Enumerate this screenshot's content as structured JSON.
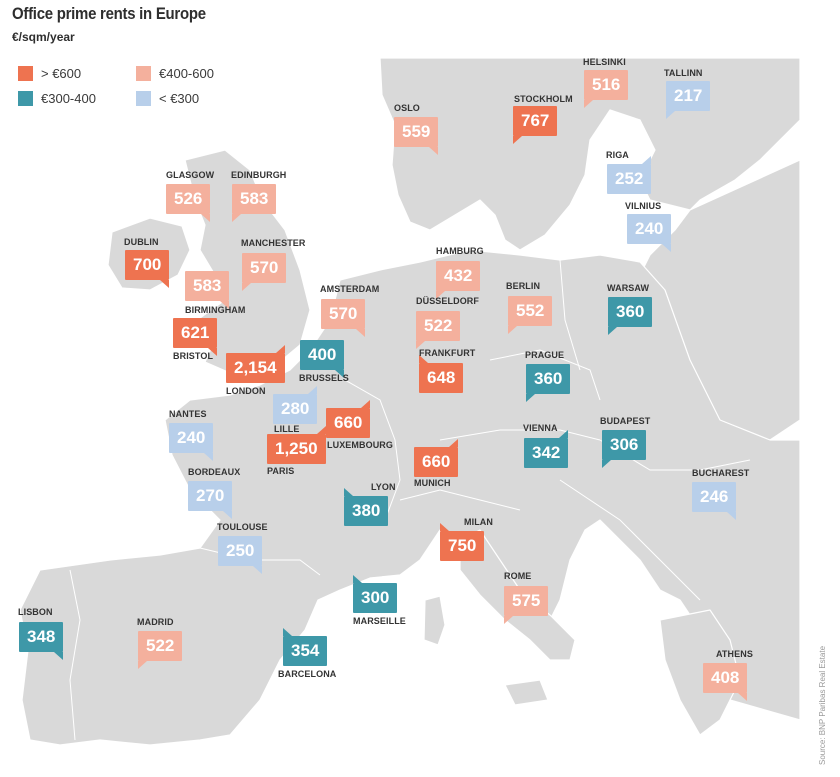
{
  "title": "Office prime rents in Europe",
  "subtitle": "€/sqm/year",
  "source": "Source: BNP Paribas Real Estate",
  "colors": {
    "sea": "#ffffff",
    "land": "#d9d9d9",
    "border": "#ffffff",
    "text": "#333333",
    "over_600": "#ee7350",
    "range_400_600": "#f4b09d",
    "range_300_400": "#3e98a8",
    "under_300": "#b8cfea"
  },
  "legend": [
    {
      "label": "> €600",
      "color": "#ee7350"
    },
    {
      "label": "€400-600",
      "color": "#f4b09d"
    },
    {
      "label": "€300-400",
      "color": "#3e98a8"
    },
    {
      "label": "< €300",
      "color": "#b8cfea"
    }
  ],
  "cities": [
    {
      "name": "HELSINKI",
      "rent": "516",
      "tier": "range_400_600"
    },
    {
      "name": "TALLINN",
      "rent": "217",
      "tier": "under_300"
    },
    {
      "name": "OSLO",
      "rent": "559",
      "tier": "range_400_600"
    },
    {
      "name": "STOCKHOLM",
      "rent": "767",
      "tier": "over_600"
    },
    {
      "name": "RIGA",
      "rent": "252",
      "tier": "under_300"
    },
    {
      "name": "VILNIUS",
      "rent": "240",
      "tier": "under_300"
    },
    {
      "name": "GLASGOW",
      "rent": "526",
      "tier": "range_400_600"
    },
    {
      "name": "EDINBURGH",
      "rent": "583",
      "tier": "range_400_600"
    },
    {
      "name": "DUBLIN",
      "rent": "700",
      "tier": "over_600"
    },
    {
      "name": "MANCHESTER",
      "rent": "570",
      "tier": "range_400_600"
    },
    {
      "name": "BIRMINGHAM",
      "rent": "583",
      "tier": "range_400_600"
    },
    {
      "name": "BRISTOL",
      "rent": "621",
      "tier": "over_600"
    },
    {
      "name": "LONDON",
      "rent": "2,154",
      "tier": "over_600"
    },
    {
      "name": "HAMBURG",
      "rent": "432",
      "tier": "range_400_600"
    },
    {
      "name": "BERLIN",
      "rent": "552",
      "tier": "range_400_600"
    },
    {
      "name": "WARSAW",
      "rent": "360",
      "tier": "range_300_400"
    },
    {
      "name": "AMSTERDAM",
      "rent": "570",
      "tier": "range_400_600"
    },
    {
      "name": "DÜSSELDORF",
      "rent": "522",
      "tier": "range_400_600"
    },
    {
      "name": "BRUSSELS",
      "rent": "400",
      "tier": "range_300_400"
    },
    {
      "name": "FRANKFURT",
      "rent": "648",
      "tier": "over_600"
    },
    {
      "name": "PRAGUE",
      "rent": "360",
      "tier": "range_300_400"
    },
    {
      "name": "LILLE",
      "rent": "280",
      "tier": "under_300"
    },
    {
      "name": "LUXEMBOURG",
      "rent": "660",
      "tier": "over_600"
    },
    {
      "name": "NANTES",
      "rent": "240",
      "tier": "under_300"
    },
    {
      "name": "PARIS",
      "rent": "1,250",
      "tier": "over_600"
    },
    {
      "name": "VIENNA",
      "rent": "342",
      "tier": "range_300_400"
    },
    {
      "name": "BUDAPEST",
      "rent": "306",
      "tier": "range_300_400"
    },
    {
      "name": "MUNICH",
      "rent": "660",
      "tier": "over_600"
    },
    {
      "name": "BORDEAUX",
      "rent": "270",
      "tier": "under_300"
    },
    {
      "name": "LYON",
      "rent": "380",
      "tier": "range_300_400"
    },
    {
      "name": "BUCHAREST",
      "rent": "246",
      "tier": "under_300"
    },
    {
      "name": "TOULOUSE",
      "rent": "250",
      "tier": "under_300"
    },
    {
      "name": "MILAN",
      "rent": "750",
      "tier": "over_600"
    },
    {
      "name": "LISBON",
      "rent": "348",
      "tier": "range_300_400"
    },
    {
      "name": "MADRID",
      "rent": "522",
      "tier": "range_400_600"
    },
    {
      "name": "MARSEILLE",
      "rent": "300",
      "tier": "range_300_400"
    },
    {
      "name": "ROME",
      "rent": "575",
      "tier": "range_400_600"
    },
    {
      "name": "BARCELONA",
      "rent": "354",
      "tier": "range_300_400"
    },
    {
      "name": "ATHENS",
      "rent": "408",
      "tier": "range_400_600"
    }
  ]
}
